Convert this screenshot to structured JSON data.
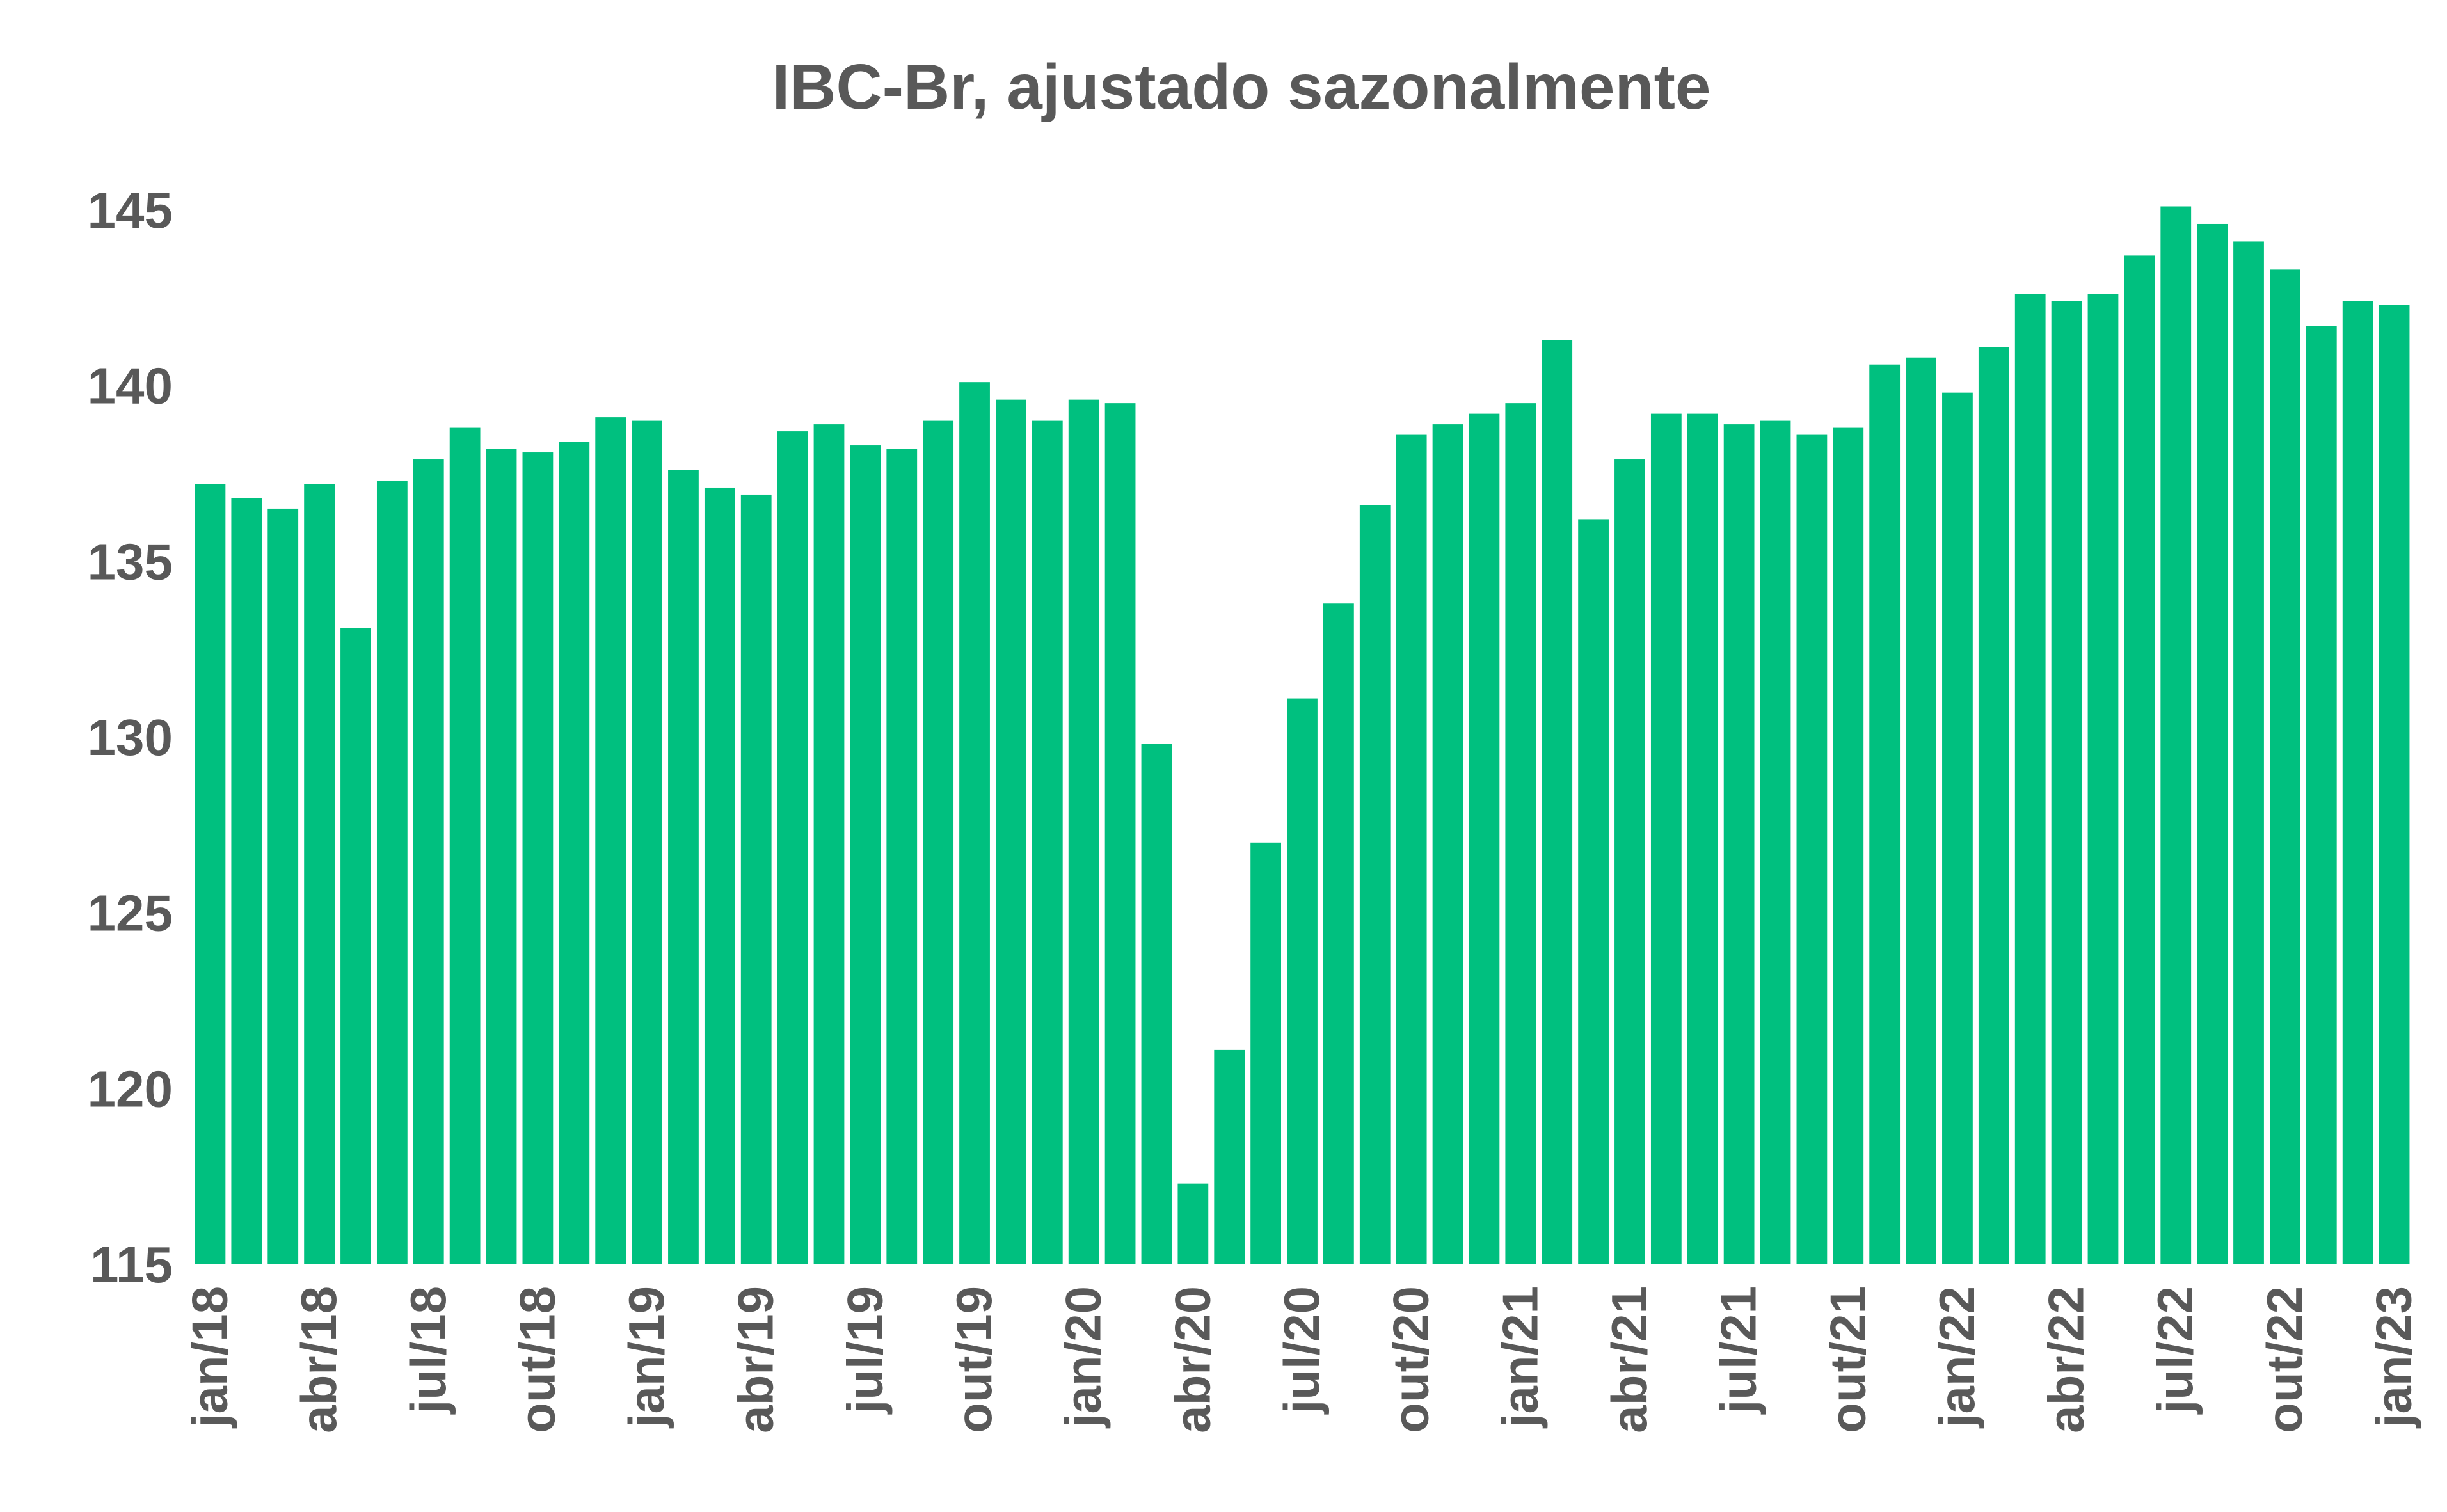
{
  "chart_data": {
    "type": "bar",
    "title": "IBC-Br, ajustado sazonalmente",
    "xlabel": "",
    "ylabel": "",
    "ylim": [
      115,
      145
    ],
    "yticks": [
      115,
      120,
      125,
      130,
      135,
      140,
      145
    ],
    "grid": false,
    "legend": "none",
    "bar_color": "#00C07F",
    "categories": [
      "jan/18",
      "fev/18",
      "mar/18",
      "abr/18",
      "mai/18",
      "jun/18",
      "jul/18",
      "ago/18",
      "set/18",
      "out/18",
      "nov/18",
      "dez/18",
      "jan/19",
      "fev/19",
      "mar/19",
      "abr/19",
      "mai/19",
      "jun/19",
      "jul/19",
      "ago/19",
      "set/19",
      "out/19",
      "nov/19",
      "dez/19",
      "jan/20",
      "fev/20",
      "mar/20",
      "abr/20",
      "mai/20",
      "jun/20",
      "jul/20",
      "ago/20",
      "set/20",
      "out/20",
      "nov/20",
      "dez/20",
      "jan/21",
      "fev/21",
      "mar/21",
      "abr/21",
      "mai/21",
      "jun/21",
      "jul/21",
      "ago/21",
      "set/21",
      "out/21",
      "nov/21",
      "dez/21",
      "jan/22",
      "fev/22",
      "mar/22",
      "abr/22",
      "mai/22",
      "jun/22",
      "jul/22",
      "ago/22",
      "set/22",
      "out/22",
      "nov/22",
      "dez/22",
      "jan/23"
    ],
    "xtick_labels": [
      "jan/18",
      "abr/18",
      "jul/18",
      "out/18",
      "jan/19",
      "abr/19",
      "jul/19",
      "out/19",
      "jan/20",
      "abr/20",
      "jul/20",
      "out/20",
      "jan/21",
      "abr/21",
      "jul/21",
      "out/21",
      "jan/22",
      "abr/22",
      "jul/22",
      "out/22",
      "jan/23"
    ],
    "values": [
      137.2,
      136.8,
      136.5,
      137.2,
      133.1,
      137.3,
      137.9,
      138.8,
      138.2,
      138.1,
      138.4,
      139.1,
      139.0,
      137.6,
      137.1,
      136.9,
      138.7,
      138.9,
      138.3,
      138.2,
      139.0,
      140.1,
      139.6,
      139.0,
      139.6,
      139.5,
      129.8,
      117.3,
      121.1,
      127.0,
      131.1,
      133.8,
      136.6,
      138.6,
      138.9,
      139.2,
      139.5,
      141.3,
      136.2,
      137.9,
      139.2,
      139.2,
      138.9,
      139.0,
      138.6,
      138.8,
      140.6,
      140.8,
      139.8,
      141.1,
      142.6,
      142.4,
      142.6,
      143.7,
      145.1,
      144.6,
      144.1,
      143.3,
      141.7,
      142.4,
      142.3
    ]
  }
}
